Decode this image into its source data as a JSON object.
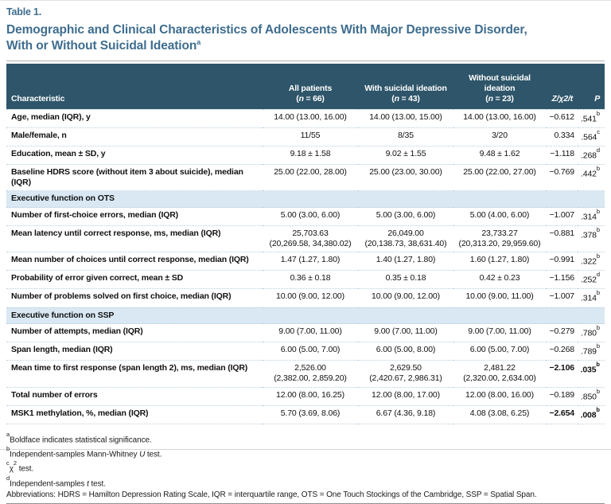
{
  "page": {
    "table_label": "Table 1.",
    "title": "Demographic and Clinical Characteristics of Adolescents With Major Depressive Disorder,\nWith or Without Suicidal Ideation",
    "title_superscript": "a"
  },
  "colors": {
    "header_bg": "#2e5569",
    "section_bg": "#d9e8f3",
    "title_blue": "#3e6d8e"
  },
  "table": {
    "columns": {
      "characteristic": "Characteristic",
      "groups": [
        {
          "label": "All patients",
          "count": "(n = 66)"
        },
        {
          "label": "With suicidal ideation",
          "count": "(n = 43)"
        },
        {
          "label": "Without suicidal\nideation",
          "count": "(n = 23)"
        }
      ],
      "stat": "Z/χ2/t",
      "p": "P"
    },
    "rows": [
      {
        "label": "Age, median (IQR), y",
        "values": [
          "14.00 (13.00, 16.00)",
          "14.00 (13.00, 15.00)",
          "14.00 (13.00, 16.00)"
        ],
        "z": "−0.612",
        "p": ".541",
        "p_sup": "b"
      },
      {
        "label": "Male/female, n",
        "values": [
          "11/55",
          "8/35",
          "3/20"
        ],
        "z": "0.334",
        "p": ".564",
        "p_sup": "c"
      },
      {
        "label": "Education, mean ± SD, y",
        "values": [
          "9.18 ± 1.58",
          "9.02 ± 1.55",
          "9.48 ± 1.62"
        ],
        "z": "−1.118",
        "p": ".268",
        "p_sup": "d"
      },
      {
        "label": "Baseline HDRS score (without item 3 about suicide), median (IQR)",
        "values": [
          "25.00 (22.00, 28.00)",
          "25.00 (23.00, 30.00)",
          "25.00 (22.00, 27.00)"
        ],
        "z": "−0.769",
        "p": ".442",
        "p_sup": "b"
      },
      {
        "section": "Executive function on OTS"
      },
      {
        "label": "Number of first-choice errors, median (IQR)",
        "values": [
          "5.00 (3.00, 6.00)",
          "5.00 (3.00, 6.00)",
          "5.00 (4.00, 6.00)"
        ],
        "z": "−1.007",
        "p": ".314",
        "p_sup": "b"
      },
      {
        "label": "Mean latency until correct response, ms, median (IQR)",
        "values": [
          "25,703.63\n(20,269.58, 34,380.02)",
          "26,049.00\n(20,138.73, 38,631.40)",
          "23,733.27\n(20,313.20, 29,959.60)"
        ],
        "z": "−0.881",
        "p": ".378",
        "p_sup": "b"
      },
      {
        "label": "Mean number of choices until correct response, median (IQR)",
        "values": [
          "1.47 (1.27, 1.80)",
          "1.40 (1.27, 1.80)",
          "1.60 (1.27, 1.80)"
        ],
        "z": "−0.991",
        "p": ".322",
        "p_sup": "b"
      },
      {
        "label": "Probability of error given correct, mean ± SD",
        "values": [
          "0.36 ± 0.18",
          "0.35 ± 0.18",
          "0.42 ± 0.23"
        ],
        "z": "−1.156",
        "p": ".252",
        "p_sup": "d"
      },
      {
        "label": "Number of problems solved on first choice, median (IQR)",
        "values": [
          "10.00 (9.00, 12.00)",
          "10.00 (9.00, 12.00)",
          "10.00 (9.00, 11.00)"
        ],
        "z": "−1.007",
        "p": ".314",
        "p_sup": "b"
      },
      {
        "section": "Executive function on SSP"
      },
      {
        "label": "Number of attempts, median (IQR)",
        "values": [
          "9.00 (7.00, 11.00)",
          "9.00 (7.00, 11.00)",
          "9.00 (7.00, 11.00)"
        ],
        "z": "−0.279",
        "p": ".780",
        "p_sup": "b"
      },
      {
        "label": "Span length, median (IQR)",
        "values": [
          "6.00 (5.00, 7.00)",
          "6.00 (5.00, 8.00)",
          "6.00 (5.00, 7.00)"
        ],
        "z": "−0.268",
        "p": ".789",
        "p_sup": "b"
      },
      {
        "label": "Mean time to first response (span length 2), ms, median (IQR)",
        "values": [
          "2,526.00\n(2,382.00, 2,859.20)",
          "2,629.50\n(2,420.67, 2,986.31)",
          "2,481.22\n(2,320.00, 2,634.00)"
        ],
        "z": "−2.106",
        "p": ".035",
        "p_sup": "b",
        "significant": true
      },
      {
        "label": "Total number of errors",
        "values": [
          "12.00 (8.00, 16.25)",
          "12.00 (8.00, 17.00)",
          "12.00 (8.00, 16.00)"
        ],
        "z": "−0.189",
        "p": ".850",
        "p_sup": "b"
      },
      {
        "label": "MSK1 methylation, %, median (IQR)",
        "values": [
          "5.70 (3.69, 8.06)",
          "6.67 (4.36, 9.18)",
          "4.08 (3.08, 6.25)"
        ],
        "z": "−2.654",
        "p": ".008",
        "p_sup": "b",
        "significant": true
      }
    ]
  },
  "footnotes": [
    {
      "sup": "a",
      "segments": [
        {
          "text": "Boldface indicates statistical significance."
        }
      ]
    },
    {
      "sup": "b",
      "segments": [
        {
          "text": "Independent-samples Mann-Whitney "
        },
        {
          "text": "U",
          "italic": true
        },
        {
          "text": " test."
        }
      ]
    },
    {
      "sup": "c",
      "segments": [
        {
          "text": "χ"
        },
        {
          "text": "2",
          "sup": true
        },
        {
          "text": " test."
        }
      ]
    },
    {
      "sup": "d",
      "segments": [
        {
          "text": "Independent-samples "
        },
        {
          "text": "t",
          "italic": true
        },
        {
          "text": " test."
        }
      ]
    }
  ],
  "abbreviations": "Abbreviations: HDRS = Hamilton Depression Rating Scale, IQR = interquartile range, OTS = One Touch Stockings of the Cambridge, SSP = Spatial Span."
}
